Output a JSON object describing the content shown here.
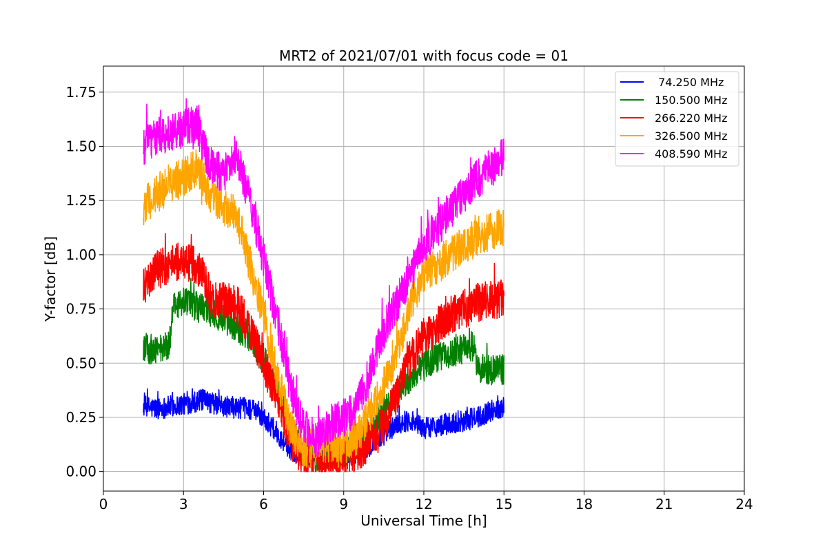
{
  "chart_data": {
    "type": "line",
    "title": "MRT2 of 2021/07/01 with focus code = 01",
    "xlabel": "Universal Time [h]",
    "ylabel": "Y-factor [dB]",
    "xlim": [
      0,
      24
    ],
    "ylim": [
      -0.09,
      1.87
    ],
    "xticks": [
      0,
      3,
      6,
      9,
      12,
      15,
      18,
      21,
      24
    ],
    "yticks": [
      0.0,
      0.25,
      0.5,
      0.75,
      1.0,
      1.25,
      1.5,
      1.75
    ],
    "xtick_labels": [
      "0",
      "3",
      "6",
      "9",
      "12",
      "15",
      "18",
      "21",
      "24"
    ],
    "ytick_labels": [
      "0.00",
      "0.25",
      "0.50",
      "0.75",
      "1.00",
      "1.25",
      "1.50",
      "1.75"
    ],
    "grid": true,
    "legend_position": "top-right",
    "series": [
      {
        "name": " 74.250 MHz",
        "color": "#0000ff",
        "noise": 0.05,
        "x": [
          1.5,
          2.0,
          3.0,
          3.7,
          4.5,
          5.5,
          6.0,
          6.5,
          7.0,
          7.5,
          8.0,
          8.5,
          9.0,
          9.5,
          10.0,
          10.5,
          11.0,
          11.5,
          12.0,
          13.0,
          14.0,
          14.5,
          15.0
        ],
        "values": [
          0.3,
          0.29,
          0.31,
          0.33,
          0.3,
          0.29,
          0.25,
          0.18,
          0.1,
          0.08,
          0.07,
          0.06,
          0.07,
          0.09,
          0.12,
          0.17,
          0.22,
          0.24,
          0.2,
          0.22,
          0.25,
          0.28,
          0.3
        ]
      },
      {
        "name": "150.500 MHz",
        "color": "#008000",
        "noise": 0.07,
        "x": [
          1.5,
          2.0,
          2.5,
          2.6,
          3.0,
          3.5,
          4.5,
          5.5,
          6.0,
          6.5,
          7.0,
          7.5,
          8.0,
          8.5,
          9.0,
          9.5,
          10.0,
          10.5,
          11.0,
          11.5,
          12.0,
          13.0,
          13.9,
          14.0,
          14.5,
          15.0
        ],
        "values": [
          0.57,
          0.56,
          0.58,
          0.75,
          0.78,
          0.76,
          0.71,
          0.62,
          0.52,
          0.38,
          0.2,
          0.1,
          0.07,
          0.08,
          0.09,
          0.13,
          0.2,
          0.28,
          0.36,
          0.43,
          0.5,
          0.55,
          0.58,
          0.48,
          0.47,
          0.47
        ]
      },
      {
        "name": "266.220 MHz",
        "color": "#ff0000",
        "noise": 0.09,
        "x": [
          1.5,
          2.0,
          3.0,
          3.7,
          4.0,
          5.0,
          5.5,
          6.0,
          6.5,
          7.0,
          7.5,
          8.0,
          8.5,
          9.0,
          9.5,
          10.0,
          10.5,
          11.0,
          11.5,
          12.0,
          13.0,
          14.0,
          15.0
        ],
        "values": [
          0.85,
          0.93,
          0.98,
          0.93,
          0.8,
          0.77,
          0.65,
          0.5,
          0.35,
          0.15,
          0.06,
          0.07,
          0.06,
          0.06,
          0.08,
          0.15,
          0.22,
          0.36,
          0.52,
          0.62,
          0.72,
          0.78,
          0.8
        ]
      },
      {
        "name": "326.500 MHz",
        "color": "#ffa500",
        "noise": 0.09,
        "x": [
          1.5,
          2.0,
          3.0,
          3.5,
          4.0,
          5.0,
          5.5,
          6.0,
          6.5,
          7.0,
          7.5,
          8.0,
          8.5,
          9.0,
          9.5,
          10.0,
          10.5,
          11.0,
          11.5,
          12.0,
          13.0,
          14.0,
          15.0
        ],
        "values": [
          1.22,
          1.28,
          1.36,
          1.4,
          1.28,
          1.18,
          0.95,
          0.72,
          0.45,
          0.2,
          0.1,
          0.12,
          0.13,
          0.12,
          0.16,
          0.28,
          0.4,
          0.55,
          0.78,
          0.9,
          1.0,
          1.08,
          1.13
        ]
      },
      {
        "name": "408.590 MHz",
        "color": "#ff00ff",
        "noise": 0.09,
        "x": [
          1.5,
          2.0,
          3.0,
          3.5,
          4.0,
          4.5,
          5.0,
          5.5,
          6.0,
          6.5,
          7.0,
          7.5,
          8.0,
          8.5,
          9.0,
          9.5,
          10.0,
          10.5,
          11.0,
          11.5,
          12.0,
          13.0,
          14.0,
          15.0
        ],
        "values": [
          1.5,
          1.55,
          1.58,
          1.6,
          1.4,
          1.38,
          1.45,
          1.25,
          0.98,
          0.7,
          0.4,
          0.2,
          0.15,
          0.22,
          0.25,
          0.3,
          0.45,
          0.65,
          0.78,
          0.9,
          1.05,
          1.2,
          1.35,
          1.45
        ]
      }
    ]
  }
}
